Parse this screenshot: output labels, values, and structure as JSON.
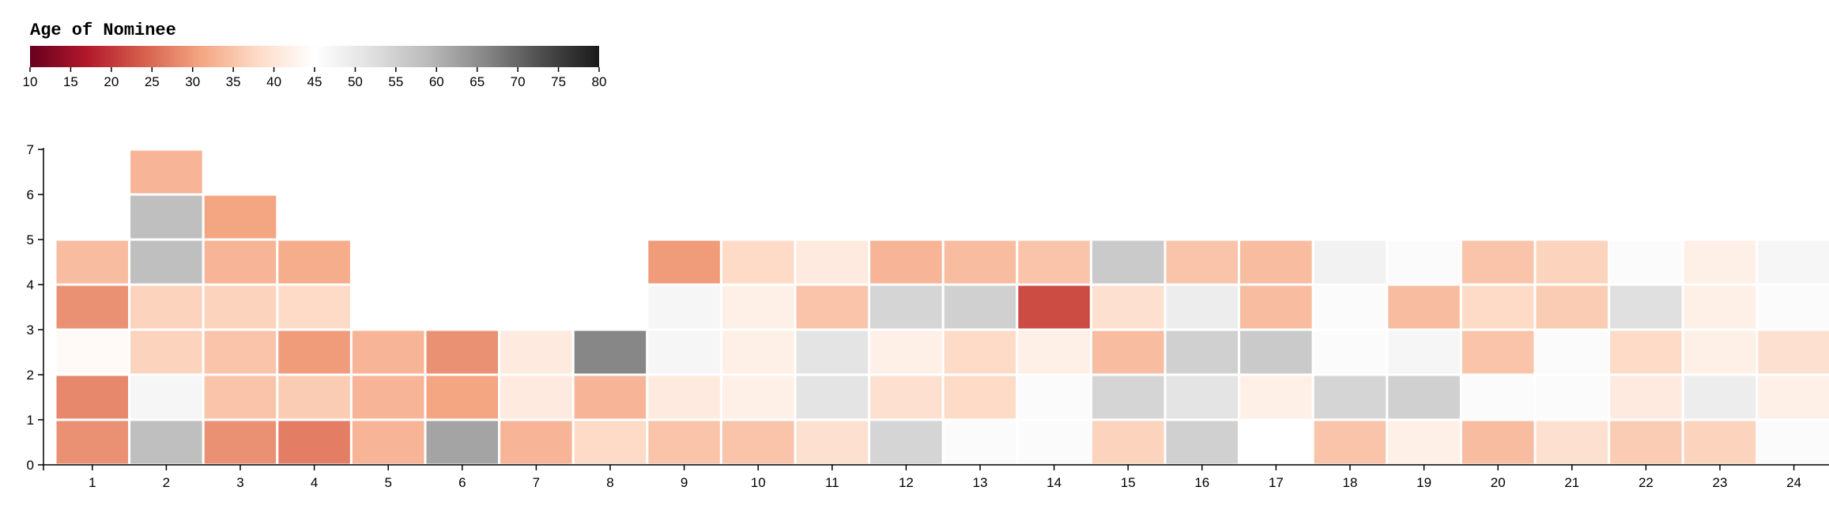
{
  "chart_data": {
    "type": "heatmap",
    "legend": {
      "title": "Age of Nominee",
      "domain": [
        10,
        80
      ],
      "ticks": [
        10,
        15,
        20,
        25,
        30,
        35,
        40,
        45,
        50,
        55,
        60,
        65,
        70,
        75,
        80
      ],
      "color_stops": [
        "#67001f",
        "#b2182b",
        "#d6604d",
        "#f4a582",
        "#fddbc7",
        "#ffffff",
        "#e0e0e0",
        "#bababa",
        "#878787",
        "#4d4d4d",
        "#1a1a1a"
      ]
    },
    "x_ticks": [
      "1",
      "2",
      "3",
      "4",
      "5",
      "6",
      "7",
      "8",
      "9",
      "10",
      "11",
      "12",
      "13",
      "14",
      "15",
      "16",
      "17",
      "18",
      "19",
      "20",
      "21",
      "22",
      "23",
      "24"
    ],
    "y_ticks": [
      "0",
      "1",
      "2",
      "3",
      "4",
      "5",
      "6",
      "7"
    ],
    "ylim": [
      0,
      7
    ],
    "cells": [
      {
        "x": 1,
        "y": 0,
        "age": 29
      },
      {
        "x": 1,
        "y": 1,
        "age": 28
      },
      {
        "x": 1,
        "y": 2,
        "age": 44
      },
      {
        "x": 1,
        "y": 3,
        "age": 29
      },
      {
        "x": 1,
        "y": 4,
        "age": 34
      },
      {
        "x": 2,
        "y": 0,
        "age": 58
      },
      {
        "x": 2,
        "y": 1,
        "age": 47
      },
      {
        "x": 2,
        "y": 2,
        "age": 37
      },
      {
        "x": 2,
        "y": 3,
        "age": 37
      },
      {
        "x": 2,
        "y": 4,
        "age": 58
      },
      {
        "x": 2,
        "y": 5,
        "age": 58
      },
      {
        "x": 2,
        "y": 6,
        "age": 33
      },
      {
        "x": 3,
        "y": 0,
        "age": 29
      },
      {
        "x": 3,
        "y": 1,
        "age": 35
      },
      {
        "x": 3,
        "y": 2,
        "age": 35
      },
      {
        "x": 3,
        "y": 3,
        "age": 37
      },
      {
        "x": 3,
        "y": 4,
        "age": 33
      },
      {
        "x": 3,
        "y": 5,
        "age": 31
      },
      {
        "x": 4,
        "y": 0,
        "age": 27
      },
      {
        "x": 4,
        "y": 1,
        "age": 36
      },
      {
        "x": 4,
        "y": 2,
        "age": 30
      },
      {
        "x": 4,
        "y": 3,
        "age": 38
      },
      {
        "x": 4,
        "y": 4,
        "age": 32
      },
      {
        "x": 5,
        "y": 0,
        "age": 33
      },
      {
        "x": 5,
        "y": 1,
        "age": 33
      },
      {
        "x": 5,
        "y": 2,
        "age": 33
      },
      {
        "x": 6,
        "y": 0,
        "age": 62
      },
      {
        "x": 6,
        "y": 1,
        "age": 31
      },
      {
        "x": 6,
        "y": 2,
        "age": 29
      },
      {
        "x": 7,
        "y": 0,
        "age": 33
      },
      {
        "x": 7,
        "y": 1,
        "age": 41
      },
      {
        "x": 7,
        "y": 2,
        "age": 41
      },
      {
        "x": 8,
        "y": 0,
        "age": 38
      },
      {
        "x": 8,
        "y": 1,
        "age": 33
      },
      {
        "x": 8,
        "y": 2,
        "age": 66
      },
      {
        "x": 9,
        "y": 0,
        "age": 35
      },
      {
        "x": 9,
        "y": 1,
        "age": 41
      },
      {
        "x": 9,
        "y": 2,
        "age": 47
      },
      {
        "x": 9,
        "y": 3,
        "age": 47
      },
      {
        "x": 9,
        "y": 4,
        "age": 30
      },
      {
        "x": 10,
        "y": 0,
        "age": 35
      },
      {
        "x": 10,
        "y": 1,
        "age": 42
      },
      {
        "x": 10,
        "y": 2,
        "age": 42
      },
      {
        "x": 10,
        "y": 3,
        "age": 42
      },
      {
        "x": 10,
        "y": 4,
        "age": 38
      },
      {
        "x": 11,
        "y": 0,
        "age": 39
      },
      {
        "x": 11,
        "y": 1,
        "age": 51
      },
      {
        "x": 11,
        "y": 2,
        "age": 51
      },
      {
        "x": 11,
        "y": 3,
        "age": 35
      },
      {
        "x": 11,
        "y": 4,
        "age": 41
      },
      {
        "x": 12,
        "y": 0,
        "age": 54
      },
      {
        "x": 12,
        "y": 1,
        "age": 39
      },
      {
        "x": 12,
        "y": 2,
        "age": 42
      },
      {
        "x": 12,
        "y": 3,
        "age": 54
      },
      {
        "x": 12,
        "y": 4,
        "age": 33
      },
      {
        "x": 13,
        "y": 0,
        "age": 46
      },
      {
        "x": 13,
        "y": 1,
        "age": 38
      },
      {
        "x": 13,
        "y": 2,
        "age": 38
      },
      {
        "x": 13,
        "y": 3,
        "age": 55
      },
      {
        "x": 13,
        "y": 4,
        "age": 34
      },
      {
        "x": 14,
        "y": 0,
        "age": 46
      },
      {
        "x": 14,
        "y": 1,
        "age": 46
      },
      {
        "x": 14,
        "y": 2,
        "age": 42
      },
      {
        "x": 14,
        "y": 3,
        "age": 22
      },
      {
        "x": 14,
        "y": 4,
        "age": 35
      },
      {
        "x": 15,
        "y": 0,
        "age": 37
      },
      {
        "x": 15,
        "y": 1,
        "age": 54
      },
      {
        "x": 15,
        "y": 2,
        "age": 34
      },
      {
        "x": 15,
        "y": 3,
        "age": 39
      },
      {
        "x": 15,
        "y": 4,
        "age": 56
      },
      {
        "x": 16,
        "y": 0,
        "age": 55
      },
      {
        "x": 16,
        "y": 1,
        "age": 51
      },
      {
        "x": 16,
        "y": 2,
        "age": 55
      },
      {
        "x": 16,
        "y": 3,
        "age": 49
      },
      {
        "x": 16,
        "y": 4,
        "age": 35
      },
      {
        "x": 17,
        "y": 0,
        "age": 45
      },
      {
        "x": 17,
        "y": 1,
        "age": 42
      },
      {
        "x": 17,
        "y": 2,
        "age": 56
      },
      {
        "x": 17,
        "y": 3,
        "age": 34
      },
      {
        "x": 17,
        "y": 4,
        "age": 34
      },
      {
        "x": 18,
        "y": 0,
        "age": 35
      },
      {
        "x": 18,
        "y": 1,
        "age": 54
      },
      {
        "x": 18,
        "y": 2,
        "age": 46
      },
      {
        "x": 18,
        "y": 3,
        "age": 46
      },
      {
        "x": 18,
        "y": 4,
        "age": 48
      },
      {
        "x": 19,
        "y": 0,
        "age": 42
      },
      {
        "x": 19,
        "y": 1,
        "age": 55
      },
      {
        "x": 19,
        "y": 2,
        "age": 47
      },
      {
        "x": 19,
        "y": 3,
        "age": 34
      },
      {
        "x": 19,
        "y": 4,
        "age": 46
      },
      {
        "x": 20,
        "y": 0,
        "age": 34
      },
      {
        "x": 20,
        "y": 1,
        "age": 46
      },
      {
        "x": 20,
        "y": 2,
        "age": 35
      },
      {
        "x": 20,
        "y": 3,
        "age": 38
      },
      {
        "x": 20,
        "y": 4,
        "age": 35
      },
      {
        "x": 21,
        "y": 0,
        "age": 39
      },
      {
        "x": 21,
        "y": 1,
        "age": 46
      },
      {
        "x": 21,
        "y": 2,
        "age": 46
      },
      {
        "x": 21,
        "y": 3,
        "age": 36
      },
      {
        "x": 21,
        "y": 4,
        "age": 37
      },
      {
        "x": 22,
        "y": 0,
        "age": 36
      },
      {
        "x": 22,
        "y": 1,
        "age": 41
      },
      {
        "x": 22,
        "y": 2,
        "age": 38
      },
      {
        "x": 22,
        "y": 3,
        "age": 52
      },
      {
        "x": 22,
        "y": 4,
        "age": 46
      },
      {
        "x": 23,
        "y": 0,
        "age": 37
      },
      {
        "x": 23,
        "y": 1,
        "age": 49
      },
      {
        "x": 23,
        "y": 2,
        "age": 42
      },
      {
        "x": 23,
        "y": 3,
        "age": 42
      },
      {
        "x": 23,
        "y": 4,
        "age": 42
      },
      {
        "x": 24,
        "y": 0,
        "age": 46
      },
      {
        "x": 24,
        "y": 1,
        "age": 42
      },
      {
        "x": 24,
        "y": 2,
        "age": 39
      },
      {
        "x": 24,
        "y": 3,
        "age": 46
      },
      {
        "x": 24,
        "y": 4,
        "age": 47
      }
    ]
  }
}
